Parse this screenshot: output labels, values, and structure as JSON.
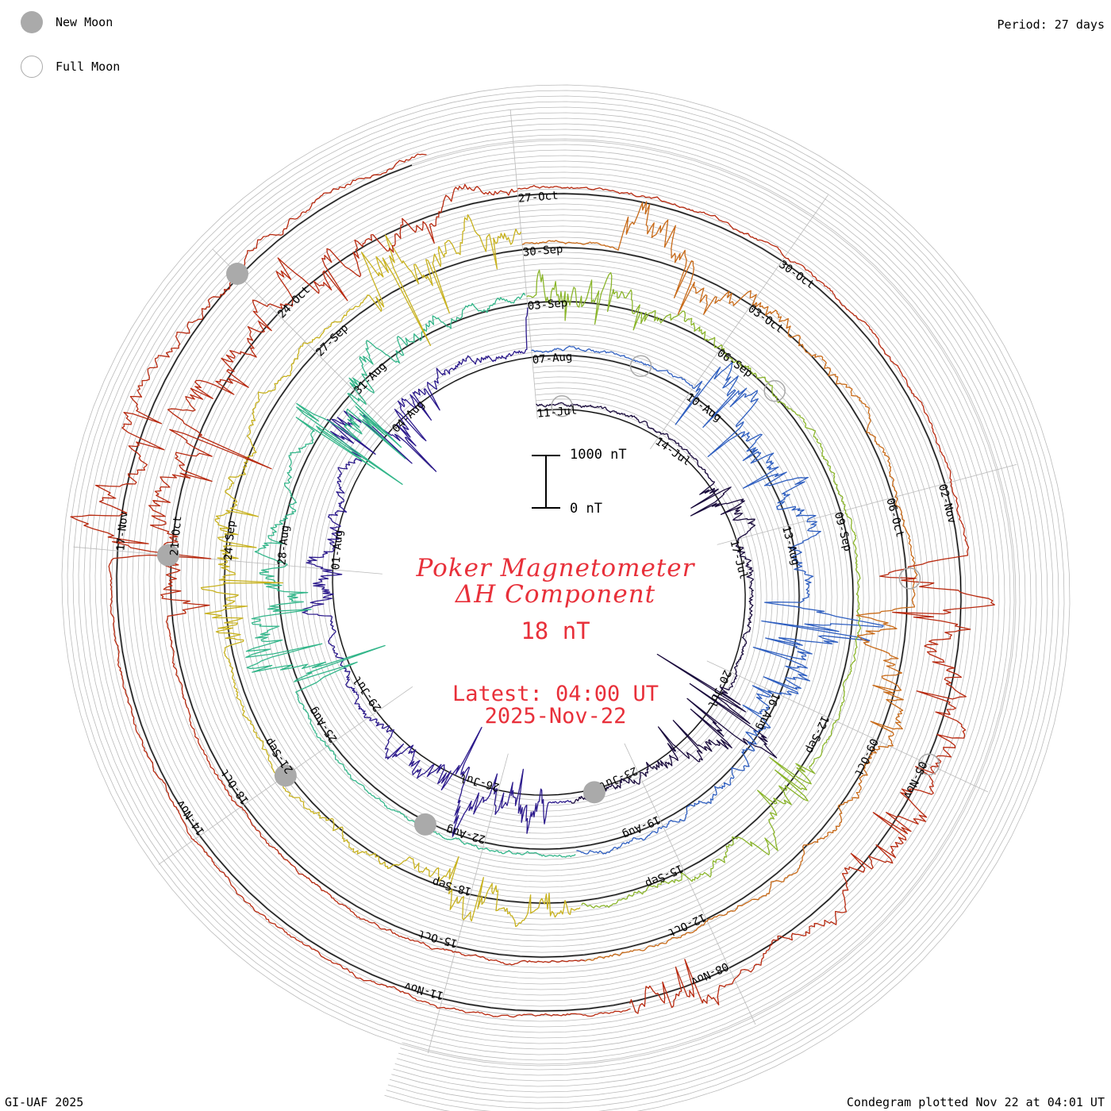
{
  "legend": {
    "new_moon_label": "New Moon",
    "full_moon_label": "Full Moon"
  },
  "period_label": "Period: 27 days",
  "title": {
    "line1": "Poker Magnetometer",
    "line2": "ΔH Component",
    "value": "18 nT",
    "latest": "Latest: 04:00 UT",
    "latest_date": "2025-Nov-22"
  },
  "scale_bar": {
    "top_label": "1000 nT",
    "bottom_label": "0 nT"
  },
  "footer": {
    "left": "GI-UAF 2025",
    "right": "Condegram plotted Nov 22 at 04:01 UT"
  },
  "colors": {
    "title": "#e8303a",
    "grid": "#bbbbbb",
    "moon_fill": "#aaaaaa",
    "lap_colors": [
      "#1a0b3d",
      "#2c1a8c",
      "#2f5fc0",
      "#33b68a",
      "#8ab52a",
      "#c8b21f",
      "#c86a18",
      "#b82a10"
    ]
  },
  "chart_data": {
    "type": "line",
    "title": "Poker Magnetometer ΔH Component",
    "layout": "condegram spiral",
    "period_days": 27,
    "start_date": "2025-07-11",
    "end_date": "2025-11-22",
    "scale_nT": [
      0,
      1000
    ],
    "date_labels": [
      "11-Jul",
      "14-Jul",
      "17-Jul",
      "20-Jul",
      "23-Jul",
      "26-Jul",
      "29-Jul",
      "01-Aug",
      "04-Aug",
      "07-Aug",
      "10-Aug",
      "13-Aug",
      "16-Aug",
      "19-Aug",
      "22-Aug",
      "25-Aug",
      "28-Aug",
      "31-Aug",
      "03-Sep",
      "06-Sep",
      "09-Sep",
      "12-Sep",
      "15-Sep",
      "18-Sep",
      "21-Sep",
      "24-Sep",
      "27-Sep",
      "30-Sep",
      "03-Oct",
      "06-Oct",
      "09-Oct",
      "12-Oct",
      "15-Oct",
      "18-Oct",
      "21-Oct",
      "24-Oct",
      "27-Oct",
      "30-Oct",
      "02-Nov",
      "05-Nov",
      "08-Nov",
      "11-Nov",
      "14-Nov",
      "17-Nov"
    ],
    "new_moons": [
      "2025-07-24",
      "2025-08-23",
      "2025-09-21",
      "2025-10-21",
      "2025-11-20"
    ],
    "full_moons": [
      "2025-07-10",
      "2025-08-09",
      "2025-09-07",
      "2025-10-07",
      "2025-11-05"
    ],
    "grid": true
  }
}
